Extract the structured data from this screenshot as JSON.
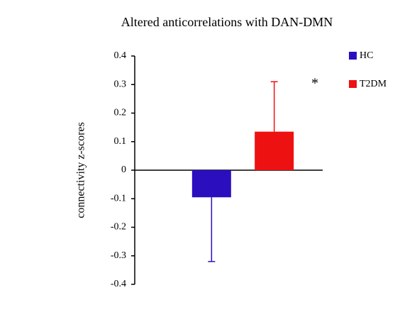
{
  "chart_data": {
    "type": "bar",
    "title": "Altered anticorrelations with DAN-DMN",
    "ylabel": "connectivity z-scores",
    "categories": [
      null
    ],
    "series": [
      {
        "name": "HC",
        "color": "#2b0fbf",
        "values": [
          -0.095
        ],
        "errors": [
          0.225
        ]
      },
      {
        "name": "T2DM",
        "color": "#ee1111",
        "values": [
          0.135
        ],
        "errors": [
          0.175
        ]
      }
    ],
    "annotations": [
      "*"
    ],
    "ylim": [
      -0.4,
      0.4
    ],
    "yticks": [
      -0.4,
      -0.3,
      -0.2,
      -0.1,
      0,
      0.1,
      0.2,
      0.3,
      0.4
    ],
    "legend": "upper right"
  }
}
